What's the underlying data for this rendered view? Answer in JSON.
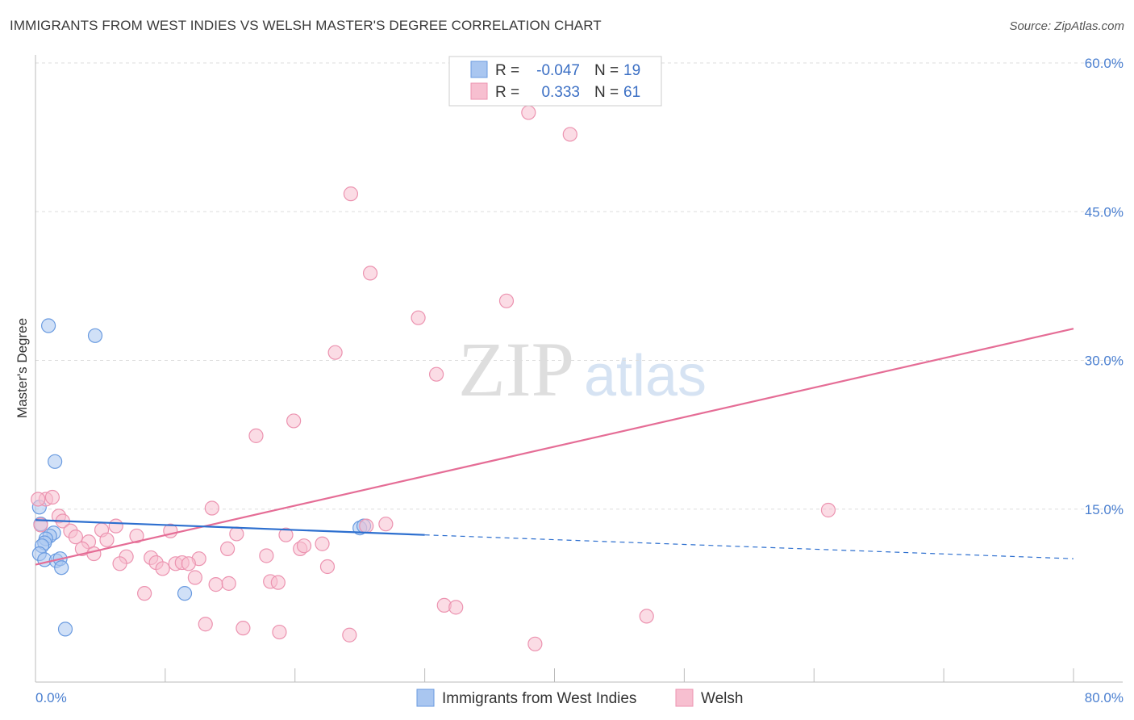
{
  "header": {
    "title": "IMMIGRANTS FROM WEST INDIES VS WELSH MASTER'S DEGREE CORRELATION CHART",
    "source": "Source: ZipAtlas.com"
  },
  "watermark": {
    "zip": "ZIP",
    "atlas": "atlas"
  },
  "legend": {
    "rows": [
      {
        "r_label": "R =",
        "r_value": "-0.047",
        "n_label": "N =",
        "n_value": "19"
      },
      {
        "r_label": "R =",
        "r_value": "0.333",
        "n_label": "N =",
        "n_value": "61"
      }
    ]
  },
  "bottom_legend": {
    "items": [
      {
        "label": "Immigrants from West Indies"
      },
      {
        "label": "Welsh"
      }
    ]
  },
  "chart_data": {
    "type": "scatter",
    "title": "IMMIGRANTS FROM WEST INDIES VS WELSH MASTER'S DEGREE CORRELATION CHART",
    "xlabel": "",
    "ylabel": "Master's Degree",
    "xlim": [
      0,
      80
    ],
    "ylim": [
      0,
      60
    ],
    "x_tick_labels": [
      "0.0%",
      "80.0%"
    ],
    "y_ticks": [
      {
        "value": 15,
        "label": "15.0%"
      },
      {
        "value": 30,
        "label": "30.0%"
      },
      {
        "value": 45,
        "label": "45.0%"
      },
      {
        "value": 60,
        "label": "60.0%"
      }
    ],
    "colors": {
      "west_indies_fill": "#a9c6f0",
      "west_indies_stroke": "#6a9be0",
      "west_indies_line": "#2d6fcf",
      "welsh_fill": "#f7bfd0",
      "welsh_stroke": "#ec93b0",
      "welsh_line": "#e56d96",
      "tick_label": "#4a7fd0",
      "grid": "#dddddd"
    },
    "series": [
      {
        "name": "Immigrants from West Indies",
        "r": -0.047,
        "n": 19,
        "trend": {
          "x0": 0,
          "y0": 13.9,
          "x1": 30,
          "y1": 12.4,
          "dash_to_x": 80,
          "dash_to_y": 10.0
        },
        "points": [
          [
            1.0,
            33.5
          ],
          [
            4.6,
            32.5
          ],
          [
            1.5,
            19.8
          ],
          [
            0.3,
            15.2
          ],
          [
            0.4,
            13.5
          ],
          [
            1.4,
            12.6
          ],
          [
            1.1,
            12.3
          ],
          [
            0.8,
            12.0
          ],
          [
            0.7,
            11.6
          ],
          [
            0.5,
            11.3
          ],
          [
            0.3,
            10.5
          ],
          [
            0.7,
            9.9
          ],
          [
            1.6,
            9.8
          ],
          [
            1.9,
            10.0
          ],
          [
            2.0,
            9.1
          ],
          [
            25.0,
            13.1
          ],
          [
            25.3,
            13.3
          ],
          [
            11.5,
            6.5
          ],
          [
            2.3,
            2.9
          ]
        ]
      },
      {
        "name": "Welsh",
        "r": 0.333,
        "n": 61,
        "trend": {
          "x0": 0,
          "y0": 9.4,
          "x1": 80,
          "y1": 33.2
        },
        "points": [
          [
            38.0,
            55.0
          ],
          [
            41.2,
            52.8
          ],
          [
            24.3,
            46.8
          ],
          [
            25.8,
            38.8
          ],
          [
            36.3,
            36.0
          ],
          [
            29.5,
            34.3
          ],
          [
            23.1,
            30.8
          ],
          [
            30.9,
            28.6
          ],
          [
            19.9,
            23.9
          ],
          [
            17.0,
            22.4
          ],
          [
            0.8,
            16.0
          ],
          [
            1.3,
            16.2
          ],
          [
            0.4,
            13.4
          ],
          [
            1.8,
            14.3
          ],
          [
            2.1,
            13.8
          ],
          [
            13.6,
            15.1
          ],
          [
            61.1,
            14.9
          ],
          [
            6.2,
            13.3
          ],
          [
            27.0,
            13.5
          ],
          [
            25.5,
            13.3
          ],
          [
            2.7,
            12.8
          ],
          [
            3.1,
            12.2
          ],
          [
            5.1,
            12.9
          ],
          [
            7.8,
            12.3
          ],
          [
            10.4,
            12.8
          ],
          [
            15.5,
            12.5
          ],
          [
            19.3,
            12.4
          ],
          [
            4.1,
            11.7
          ],
          [
            5.5,
            11.9
          ],
          [
            3.6,
            11.0
          ],
          [
            14.8,
            11.0
          ],
          [
            20.4,
            11.0
          ],
          [
            22.1,
            11.5
          ],
          [
            20.7,
            11.3
          ],
          [
            4.5,
            10.5
          ],
          [
            7.0,
            10.2
          ],
          [
            8.9,
            10.1
          ],
          [
            17.8,
            10.3
          ],
          [
            12.6,
            10.0
          ],
          [
            6.5,
            9.5
          ],
          [
            9.3,
            9.6
          ],
          [
            10.8,
            9.5
          ],
          [
            11.3,
            9.6
          ],
          [
            11.8,
            9.5
          ],
          [
            9.8,
            9.0
          ],
          [
            22.5,
            9.2
          ],
          [
            12.3,
            8.1
          ],
          [
            13.9,
            7.4
          ],
          [
            14.9,
            7.5
          ],
          [
            18.1,
            7.7
          ],
          [
            18.7,
            7.6
          ],
          [
            8.4,
            6.5
          ],
          [
            31.5,
            5.3
          ],
          [
            32.4,
            5.1
          ],
          [
            47.1,
            4.2
          ],
          [
            13.1,
            3.4
          ],
          [
            16.0,
            3.0
          ],
          [
            18.8,
            2.6
          ],
          [
            24.2,
            2.3
          ],
          [
            38.5,
            1.4
          ],
          [
            0.2,
            16.0
          ]
        ]
      }
    ]
  }
}
